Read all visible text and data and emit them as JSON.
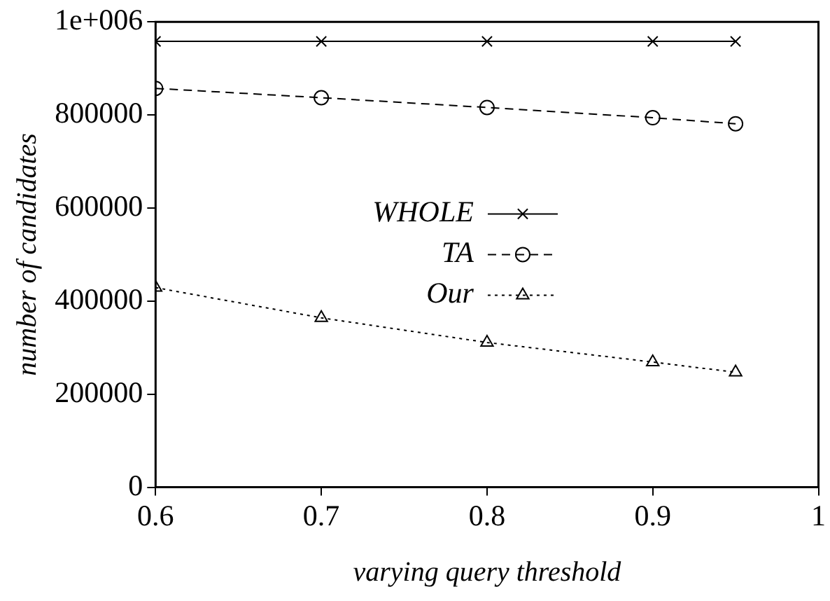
{
  "chart_data": {
    "type": "line",
    "xlabel": "varying query threshold",
    "ylabel": "number of candidates",
    "x": [
      0.6,
      0.7,
      0.8,
      0.9,
      0.95
    ],
    "series": [
      {
        "name": "WHOLE",
        "color": "#000000",
        "marker": "cross",
        "line_style": "solid",
        "values": [
          958000,
          958000,
          958000,
          958000,
          958000
        ]
      },
      {
        "name": "TA",
        "color": "#000000",
        "marker": "circle",
        "line_style": "dashed",
        "values": [
          857000,
          837000,
          816000,
          794000,
          781000
        ]
      },
      {
        "name": "Our",
        "color": "#000000",
        "marker": "triangle",
        "line_style": "dotted",
        "values": [
          429000,
          364000,
          311000,
          269000,
          247000
        ]
      }
    ],
    "xlim": [
      0.6,
      1
    ],
    "xticks": [
      0.6,
      0.7,
      0.8,
      0.9,
      1
    ],
    "ylim": [
      0,
      1000000
    ],
    "yticks": [
      0,
      200000,
      400000,
      600000,
      800000,
      {
        "value": 1000000,
        "label": "1e+006"
      }
    ],
    "grid": false,
    "legend": "center"
  }
}
